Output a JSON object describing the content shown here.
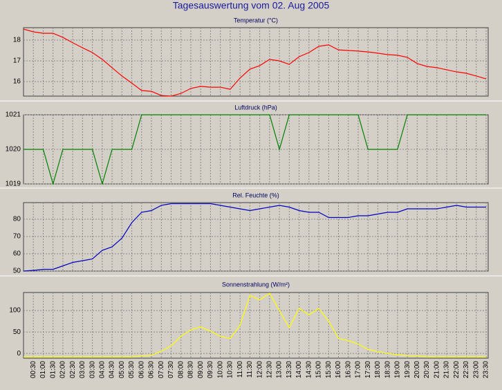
{
  "title": "Tagesauswertung vom 02. Aug 2005",
  "chart_data": [
    {
      "type": "line",
      "title": "Temperatur (°C)",
      "color": "#ff0000",
      "ylim": [
        15.3,
        18.6
      ],
      "yticks": [
        16,
        17,
        18
      ],
      "grid": true,
      "values": [
        18.53,
        18.4,
        18.33,
        18.33,
        18.13,
        17.87,
        17.63,
        17.4,
        17.07,
        16.67,
        16.27,
        15.93,
        15.57,
        15.53,
        15.33,
        15.3,
        15.43,
        15.67,
        15.77,
        15.73,
        15.73,
        15.63,
        16.17,
        16.6,
        16.77,
        17.07,
        17.0,
        16.83,
        17.2,
        17.4,
        17.7,
        17.77,
        17.53,
        17.5,
        17.47,
        17.43,
        17.37,
        17.3,
        17.27,
        17.17,
        16.87,
        16.73,
        16.67,
        16.57,
        16.47,
        16.4,
        16.27,
        16.13
      ]
    },
    {
      "type": "line",
      "title": "Luftdruck (hPa)",
      "color": "#008000",
      "ylim": [
        1019,
        1021
      ],
      "yticks": [
        1019,
        1020,
        1021
      ],
      "grid": true,
      "values": [
        1020,
        1020,
        1020,
        1019,
        1020,
        1020,
        1020,
        1020,
        1019,
        1020,
        1020,
        1020,
        1021,
        1021,
        1021,
        1021,
        1021,
        1021,
        1021,
        1021,
        1021,
        1021,
        1021,
        1021,
        1021,
        1021,
        1020,
        1021,
        1021,
        1021,
        1021,
        1021,
        1021,
        1021,
        1021,
        1020,
        1020,
        1020,
        1020,
        1021,
        1021,
        1021,
        1021,
        1021,
        1021,
        1021,
        1021,
        1021
      ]
    },
    {
      "type": "line",
      "title": "Rel. Feuchte (%)",
      "color": "#0000c0",
      "ylim": [
        50,
        89.6
      ],
      "yticks": [
        50,
        60,
        70,
        80
      ],
      "grid": true,
      "values": [
        50,
        50.4,
        51,
        51,
        53,
        55,
        56,
        57,
        62,
        64,
        69,
        78,
        84,
        85,
        88,
        89,
        89,
        89,
        89,
        89,
        88,
        87,
        86,
        85,
        86,
        87,
        88,
        87,
        85,
        84,
        84,
        81,
        81,
        81,
        82,
        82,
        83,
        84,
        84,
        86,
        86,
        86,
        86,
        87,
        88,
        87,
        87,
        87
      ]
    },
    {
      "type": "line",
      "title": "Sonnenstrahlung (W/m²)",
      "color": "#ffff00",
      "ylim": [
        -11,
        142
      ],
      "yticks": [
        0,
        50,
        100
      ],
      "grid": true,
      "categories": [
        null,
        "00:30",
        "01:00",
        "01:30",
        "02:00",
        "02:30",
        "03:00",
        "03:30",
        "04:00",
        "04:30",
        "05:00",
        "05:30",
        "06:00",
        "06:30",
        "07:00",
        "07:30",
        "08:00",
        "08:30",
        "09:00",
        "09:30",
        "10:00",
        "10:30",
        "11:00",
        "11:30",
        "12:00",
        "12:30",
        "13:00",
        "13:30",
        "14:00",
        "14:30",
        "15:00",
        "15:30",
        "16:00",
        "16:30",
        "17:00",
        "17:30",
        "18:00",
        "18:30",
        "19:00",
        "19:30",
        "20:00",
        "20:30",
        "21:00",
        "21:30",
        "22:00",
        "22:30",
        "23:00",
        "23:30"
      ],
      "values": [
        -8,
        -8,
        -8,
        -8,
        -8,
        -8,
        -8,
        -8,
        -8,
        -8,
        -8,
        -8,
        -6,
        -4,
        5,
        18,
        40,
        55,
        62,
        52,
        40,
        35,
        65,
        135,
        125,
        140,
        100,
        60,
        105,
        90,
        105,
        75,
        35,
        30,
        22,
        10,
        4,
        0,
        -3,
        -5,
        -6,
        -8,
        -8,
        -8,
        -8,
        -8,
        -8,
        -8
      ]
    }
  ]
}
